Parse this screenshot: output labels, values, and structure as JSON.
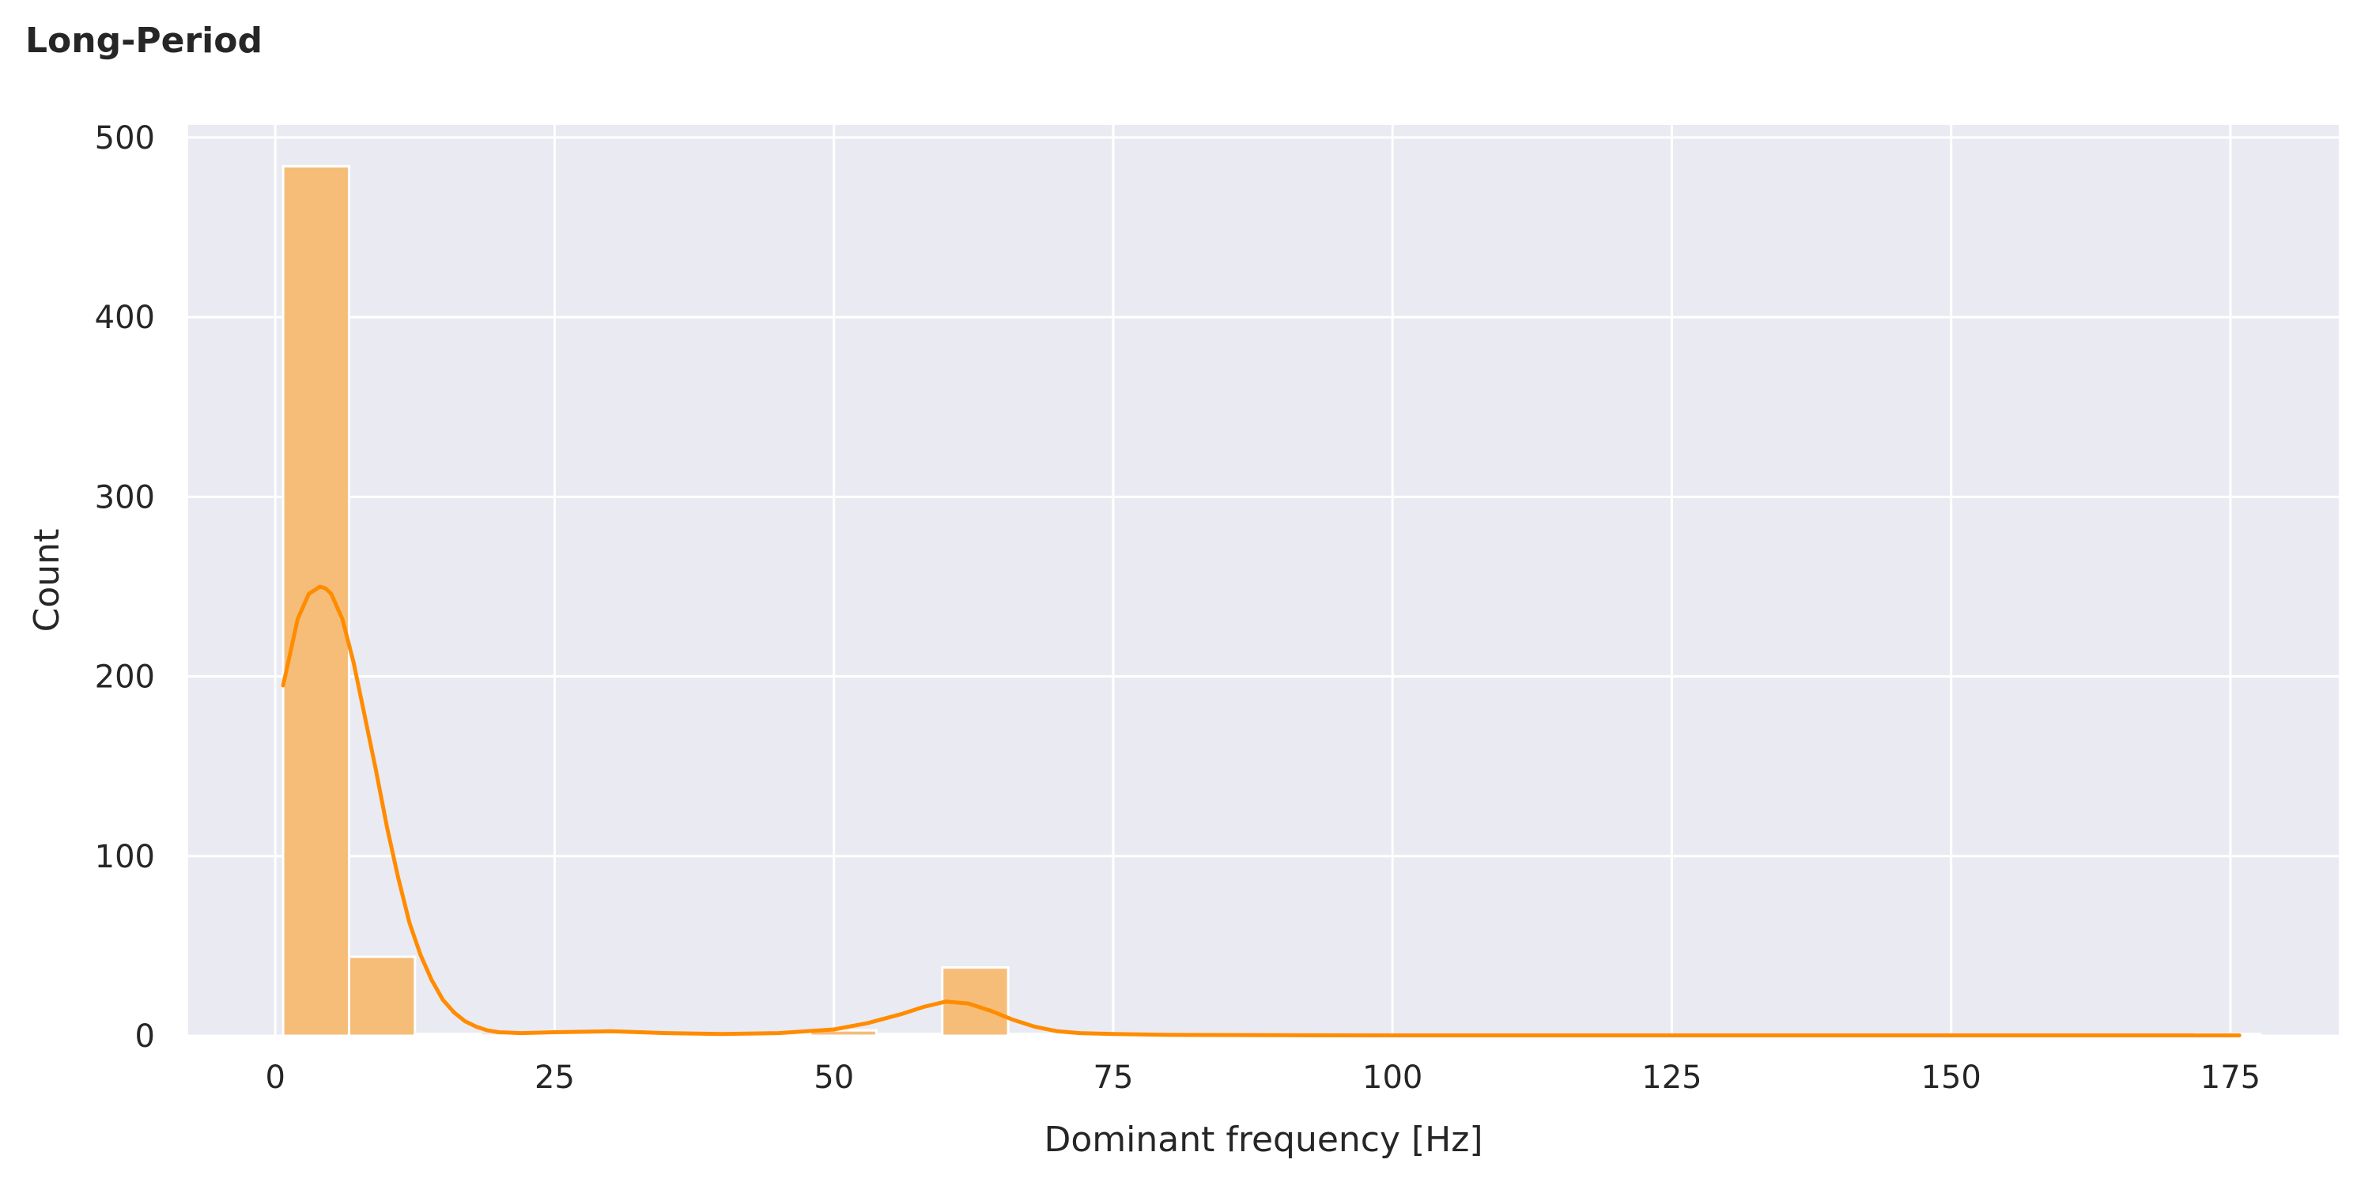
{
  "chart_data": {
    "type": "bar",
    "title": "Long-Period",
    "xlabel": "Dominant frequency [Hz]",
    "ylabel": "Count",
    "xlim": [
      -7.8,
      184.7
    ],
    "ylim": [
      0,
      507
    ],
    "xticks": [
      0,
      25,
      50,
      75,
      100,
      125,
      150,
      175
    ],
    "yticks": [
      0,
      100,
      200,
      300,
      400,
      500
    ],
    "grid": true,
    "colors": {
      "bar_fill": "#f5bd78",
      "kde_line": "#ff8c00",
      "plot_bg": "#eaeaf2",
      "grid": "#ffffff"
    },
    "bins": [
      {
        "x0": 0.7,
        "x1": 6.6,
        "count": 484
      },
      {
        "x0": 6.6,
        "x1": 12.5,
        "count": 44
      },
      {
        "x0": 12.5,
        "x1": 18.4,
        "count": 1
      },
      {
        "x0": 18.4,
        "x1": 24.3,
        "count": 0
      },
      {
        "x0": 24.3,
        "x1": 30.2,
        "count": 1
      },
      {
        "x0": 30.2,
        "x1": 36.1,
        "count": 1
      },
      {
        "x0": 36.1,
        "x1": 42.0,
        "count": 0
      },
      {
        "x0": 42.0,
        "x1": 47.9,
        "count": 1
      },
      {
        "x0": 47.9,
        "x1": 53.8,
        "count": 3
      },
      {
        "x0": 53.8,
        "x1": 59.7,
        "count": 1
      },
      {
        "x0": 59.7,
        "x1": 65.6,
        "count": 38
      },
      {
        "x0": 65.6,
        "x1": 71.5,
        "count": 1
      },
      {
        "x0": 71.5,
        "x1": 77.4,
        "count": 1
      },
      {
        "x0": 77.4,
        "x1": 83.3,
        "count": 0
      },
      {
        "x0": 83.3,
        "x1": 89.2,
        "count": 0
      },
      {
        "x0": 89.2,
        "x1": 95.1,
        "count": 0
      },
      {
        "x0": 95.1,
        "x1": 101.0,
        "count": 0
      },
      {
        "x0": 101.0,
        "x1": 106.9,
        "count": 0
      },
      {
        "x0": 106.9,
        "x1": 112.8,
        "count": 0
      },
      {
        "x0": 112.8,
        "x1": 118.7,
        "count": 0
      },
      {
        "x0": 118.7,
        "x1": 124.6,
        "count": 0
      },
      {
        "x0": 124.6,
        "x1": 130.5,
        "count": 0
      },
      {
        "x0": 130.5,
        "x1": 136.4,
        "count": 0
      },
      {
        "x0": 136.4,
        "x1": 142.3,
        "count": 0
      },
      {
        "x0": 142.3,
        "x1": 148.2,
        "count": 0
      },
      {
        "x0": 148.2,
        "x1": 154.1,
        "count": 0
      },
      {
        "x0": 154.1,
        "x1": 160.0,
        "count": 0
      },
      {
        "x0": 160.0,
        "x1": 165.9,
        "count": 0
      },
      {
        "x0": 165.9,
        "x1": 171.8,
        "count": 0
      },
      {
        "x0": 171.8,
        "x1": 177.7,
        "count": 1
      }
    ],
    "kde": {
      "x": [
        0.7,
        2,
        3,
        4,
        4.5,
        5,
        6,
        7,
        8,
        9,
        10,
        11,
        12,
        13,
        14,
        15,
        16,
        17,
        18,
        19,
        20,
        22,
        25,
        30,
        35,
        40,
        45,
        50,
        53,
        56,
        58,
        60,
        62,
        64,
        66,
        68,
        70,
        72,
        75,
        80,
        90,
        100,
        120,
        140,
        160,
        175.8
      ],
      "y": [
        195,
        232,
        246,
        250,
        249,
        246,
        232,
        208,
        178,
        148,
        116,
        88,
        63,
        45,
        31,
        20,
        13,
        8,
        5,
        3,
        2,
        1.5,
        2,
        2.5,
        1.5,
        1,
        1.5,
        3.5,
        7,
        12,
        16,
        19,
        18,
        14,
        9,
        5,
        2.5,
        1.5,
        1,
        0.5,
        0.3,
        0.2,
        0.2,
        0.2,
        0.2,
        0.2
      ]
    }
  }
}
